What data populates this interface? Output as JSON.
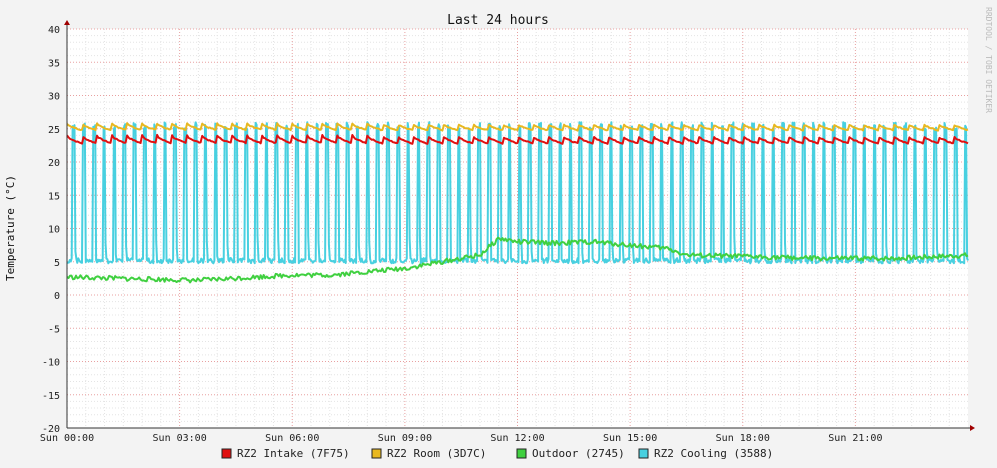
{
  "chart_data": {
    "type": "line",
    "title": "Last 24 hours",
    "ylabel": "Temperature (°C)",
    "watermark": "RRDTOOL / TOBI OETIKER",
    "ylim": [
      -20,
      40
    ],
    "y_ticks": [
      -20,
      -15,
      -10,
      -5,
      0,
      5,
      10,
      15,
      20,
      25,
      30,
      35,
      40
    ],
    "x_range_hours": [
      0,
      24
    ],
    "x_ticks": [
      {
        "hour": 0,
        "label": "Sun 00:00"
      },
      {
        "hour": 3,
        "label": "Sun 03:00"
      },
      {
        "hour": 6,
        "label": "Sun 06:00"
      },
      {
        "hour": 9,
        "label": "Sun 09:00"
      },
      {
        "hour": 12,
        "label": "Sun 12:00"
      },
      {
        "hour": 15,
        "label": "Sun 15:00"
      },
      {
        "hour": 18,
        "label": "Sun 18:00"
      },
      {
        "hour": 21,
        "label": "Sun 21:00"
      }
    ],
    "grid": true,
    "legend_position": "bottom",
    "series": [
      {
        "name": "RZ2 Intake (7F75)",
        "color": "#e01010",
        "pattern": "sawtooth",
        "x": [
          0,
          24
        ],
        "low": [
          22.8,
          22.8
        ],
        "high": [
          24.0,
          24.0
        ]
      },
      {
        "name": "RZ2 Room (3D7C)",
        "color": "#e8b820",
        "pattern": "sawtooth",
        "x": [
          0,
          24
        ],
        "low": [
          24.8,
          24.8
        ],
        "high": [
          25.8,
          25.8
        ]
      },
      {
        "name": "Outdoor (2745)",
        "color": "#40d040",
        "pattern": "noisy",
        "x": [
          0,
          2,
          3.5,
          6,
          7,
          8,
          9,
          10,
          11,
          11.5,
          12,
          13,
          14,
          16,
          16.5,
          18,
          20,
          22,
          24
        ],
        "y": [
          2.7,
          2.4,
          2.2,
          3.0,
          3.0,
          3.5,
          4.0,
          5.0,
          6.0,
          8.5,
          8.0,
          7.8,
          8.0,
          7.0,
          6.0,
          5.8,
          5.5,
          5.5,
          6.0
        ]
      },
      {
        "name": "RZ2 Cooling (3588)",
        "color": "#48d0e0",
        "pattern": "pulse",
        "x": [
          0,
          24
        ],
        "low": [
          5.0,
          5.0
        ],
        "high": [
          26.0,
          26.0
        ]
      }
    ]
  }
}
